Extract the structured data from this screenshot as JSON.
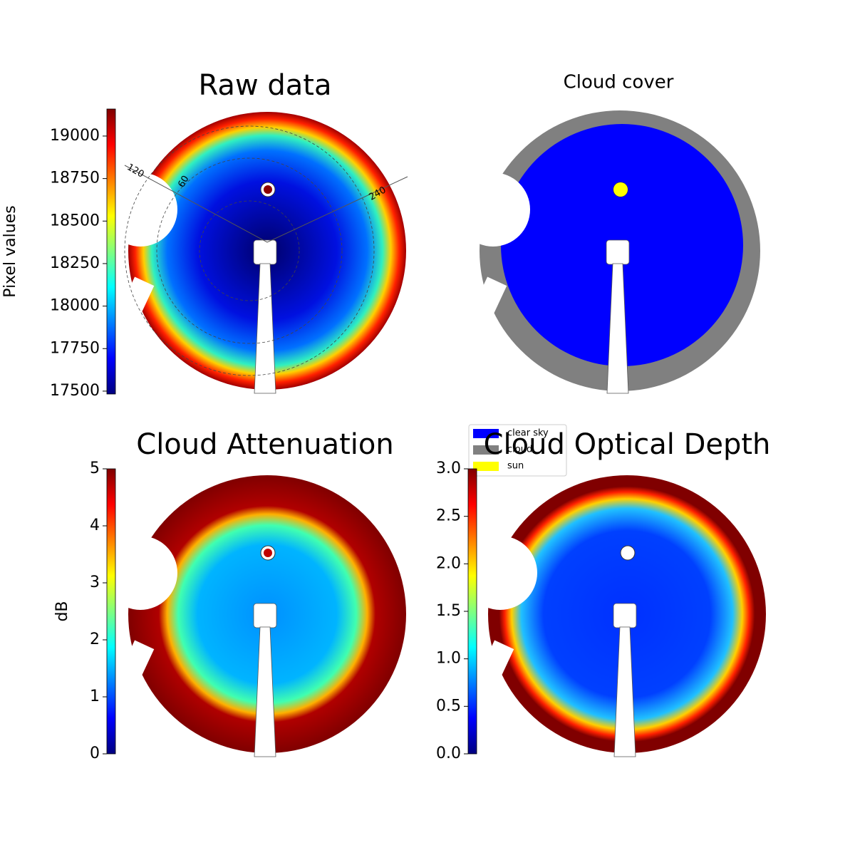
{
  "chart_data": [
    {
      "type": "image",
      "title": "Raw data",
      "colormap": "jet",
      "colorbar": {
        "label": "Pixel values",
        "lim": [
          17483,
          19159
        ],
        "ticks": [
          17500,
          17750,
          18000,
          18250,
          18500,
          18750,
          19000
        ]
      },
      "annotations": [
        "120",
        "60",
        "240"
      ]
    },
    {
      "type": "image",
      "title": "Cloud cover",
      "legend": [
        {
          "name": "clear sky",
          "color": "#0000ff"
        },
        {
          "name": "cloud",
          "color": "#808080"
        },
        {
          "name": "sun",
          "color": "#ffff00"
        }
      ]
    },
    {
      "type": "image",
      "title": "Cloud Attenuation",
      "colormap": "jet",
      "colorbar": {
        "label": "dB",
        "lim": [
          0,
          5
        ],
        "ticks": [
          0,
          1,
          2,
          3,
          4,
          5
        ]
      }
    },
    {
      "type": "image",
      "title": "Cloud Optical Depth",
      "colormap": "jet",
      "colorbar": {
        "lim": [
          0,
          3
        ],
        "ticks": [
          {
            "value": 0,
            "label": "0.0"
          },
          {
            "value": 0.5,
            "label": "0.5"
          },
          {
            "value": 1,
            "label": "1.0"
          },
          {
            "value": 1.5,
            "label": "1.5"
          },
          {
            "value": 2,
            "label": "2.0"
          },
          {
            "value": 2.5,
            "label": "2.5"
          },
          {
            "value": 3,
            "label": "3.0"
          }
        ]
      }
    }
  ]
}
